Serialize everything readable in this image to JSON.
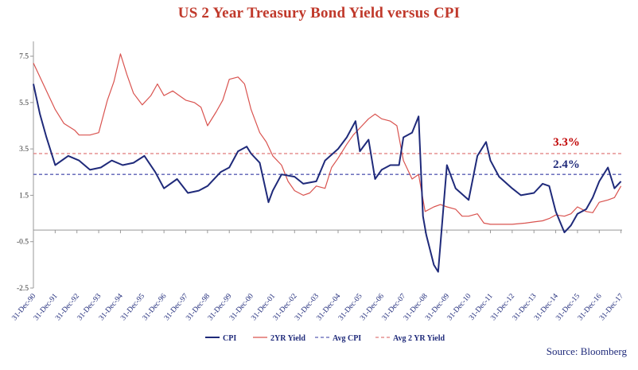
{
  "chart_data": {
    "type": "line",
    "title": "US 2 Year Treasury Bond Yield versus CPI",
    "source": "Source: Bloomberg",
    "xlabel": "",
    "ylabel": "",
    "ylim": [
      -2.5,
      8.0
    ],
    "yticks": [
      -2.5,
      -0.5,
      1.5,
      3.5,
      5.5,
      7.5
    ],
    "grid": false,
    "legend_position": "bottom",
    "categories": [
      "31-Dec-90",
      "31-Dec-91",
      "31-Dec-92",
      "31-Dec-93",
      "31-Dec-94",
      "31-Dec-95",
      "31-Dec-96",
      "31-Dec-97",
      "31-Dec-98",
      "31-Dec-99",
      "31-Dec-00",
      "31-Dec-01",
      "31-Dec-02",
      "31-Dec-03",
      "31-Dec-04",
      "31-Dec-05",
      "31-Dec-06",
      "31-Dec-07",
      "31-Dec-08",
      "31-Dec-09",
      "31-Dec-10",
      "31-Dec-11",
      "31-Dec-12",
      "31-Dec-13",
      "31-Dec-14",
      "31-Dec-15",
      "31-Dec-16",
      "31-Dec-17"
    ],
    "series": [
      {
        "name": "CPI",
        "style": "solid",
        "x": [
          1990.9,
          1991.2,
          1991.5,
          1991.9,
          1992.5,
          1993.0,
          1993.5,
          1994.0,
          1994.5,
          1995.0,
          1995.5,
          1996.0,
          1996.5,
          1996.9,
          1997.5,
          1998.0,
          1998.5,
          1998.9,
          1999.5,
          1999.9,
          2000.3,
          2000.7,
          2000.9,
          2001.3,
          2001.7,
          2001.9,
          2002.3,
          2002.9,
          2003.3,
          2003.9,
          2004.3,
          2004.9,
          2005.3,
          2005.7,
          2005.9,
          2006.3,
          2006.6,
          2006.9,
          2007.3,
          2007.7,
          2007.9,
          2008.3,
          2008.6,
          2008.8,
          2008.95,
          2009.3,
          2009.5,
          2009.9,
          2010.3,
          2010.9,
          2011.3,
          2011.7,
          2011.9,
          2012.3,
          2012.9,
          2013.3,
          2013.9,
          2014.3,
          2014.6,
          2014.9,
          2015.3,
          2015.6,
          2015.9,
          2016.3,
          2016.6,
          2016.9,
          2017.3,
          2017.6,
          2017.9
        ],
        "values": [
          6.3,
          5.0,
          4.0,
          2.8,
          3.2,
          3.0,
          2.6,
          2.7,
          3.0,
          2.8,
          2.9,
          3.2,
          2.5,
          1.8,
          2.2,
          1.6,
          1.7,
          1.9,
          2.5,
          2.7,
          3.4,
          3.6,
          3.3,
          2.9,
          1.2,
          1.7,
          2.4,
          2.3,
          2.0,
          2.1,
          3.0,
          3.5,
          4.0,
          4.7,
          3.4,
          3.9,
          2.2,
          2.6,
          2.8,
          2.8,
          4.0,
          4.2,
          4.9,
          0.6,
          -0.2,
          -1.5,
          -1.8,
          2.8,
          1.8,
          1.3,
          3.2,
          3.8,
          3.0,
          2.3,
          1.8,
          1.5,
          1.6,
          2.0,
          1.9,
          0.8,
          -0.1,
          0.2,
          0.7,
          0.9,
          1.4,
          2.1,
          2.7,
          1.8,
          2.1
        ]
      },
      {
        "name": "2YR Yield",
        "style": "solid",
        "x": [
          1990.9,
          1991.2,
          1991.5,
          1991.9,
          1992.3,
          1992.8,
          1993.0,
          1993.5,
          1993.9,
          1994.3,
          1994.6,
          1994.9,
          1995.2,
          1995.5,
          1995.9,
          1996.3,
          1996.6,
          1996.9,
          1997.3,
          1997.6,
          1997.9,
          1998.3,
          1998.6,
          1998.9,
          1999.3,
          1999.6,
          1999.9,
          2000.3,
          2000.6,
          2000.9,
          2001.3,
          2001.6,
          2001.9,
          2002.3,
          2002.6,
          2002.9,
          2003.3,
          2003.6,
          2003.9,
          2004.3,
          2004.6,
          2004.9,
          2005.3,
          2005.6,
          2005.9,
          2006.3,
          2006.6,
          2006.9,
          2007.3,
          2007.6,
          2007.9,
          2008.3,
          2008.6,
          2008.9,
          2009.3,
          2009.6,
          2009.9,
          2010.3,
          2010.6,
          2010.9,
          2011.3,
          2011.6,
          2011.9,
          2012.5,
          2012.9,
          2013.5,
          2013.9,
          2014.3,
          2014.6,
          2014.9,
          2015.3,
          2015.6,
          2015.9,
          2016.3,
          2016.6,
          2016.9,
          2017.3,
          2017.6,
          2017.9
        ],
        "values": [
          7.2,
          6.6,
          6.0,
          5.2,
          4.6,
          4.3,
          4.1,
          4.1,
          4.2,
          5.6,
          6.4,
          7.6,
          6.7,
          5.9,
          5.4,
          5.8,
          6.3,
          5.8,
          6.0,
          5.8,
          5.6,
          5.5,
          5.3,
          4.5,
          5.1,
          5.6,
          6.5,
          6.6,
          6.3,
          5.2,
          4.2,
          3.8,
          3.2,
          2.8,
          2.1,
          1.7,
          1.5,
          1.6,
          1.9,
          1.8,
          2.7,
          3.1,
          3.7,
          4.1,
          4.4,
          4.8,
          5.0,
          4.8,
          4.7,
          4.5,
          3.0,
          2.2,
          2.4,
          0.8,
          1.0,
          1.1,
          1.0,
          0.9,
          0.6,
          0.6,
          0.7,
          0.3,
          0.25,
          0.25,
          0.25,
          0.3,
          0.35,
          0.4,
          0.5,
          0.65,
          0.6,
          0.7,
          1.0,
          0.8,
          0.75,
          1.2,
          1.3,
          1.4,
          1.9
        ]
      },
      {
        "name": "Avg CPI",
        "style": "dashed",
        "constant": 2.4
      },
      {
        "name": "Avg 2 YR Yield",
        "style": "dashed",
        "constant": 3.3
      }
    ],
    "annotations": [
      {
        "text": "3.3%",
        "color": "#c00000"
      },
      {
        "text": "2.4%",
        "color": "#1f2a7a"
      }
    ],
    "colors": {
      "cpi": "#1f2a7a",
      "yield": "#d9534f",
      "avg_cpi": "#5a5fb5",
      "avg_yield": "#e07b7b",
      "title": "#c0392b",
      "axis": "#999999"
    }
  }
}
